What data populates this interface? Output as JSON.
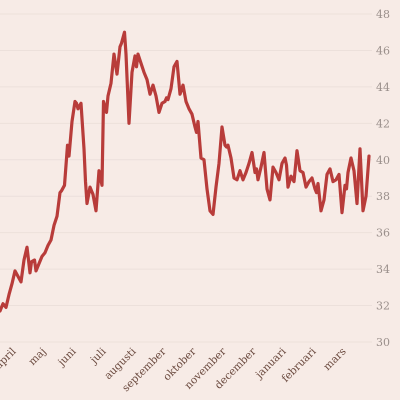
{
  "chart_data": {
    "type": "line",
    "title": "",
    "xlabel": "",
    "ylabel": "",
    "ylim": [
      30,
      48
    ],
    "y_ticks": [
      30,
      32,
      34,
      36,
      38,
      40,
      42,
      44,
      46,
      48
    ],
    "y_tick_labels": [
      "30",
      "32",
      "34",
      "36",
      "38",
      "40",
      "42",
      "44",
      "46",
      "48"
    ],
    "y_axis_position": "right",
    "grid": "horizontal",
    "x_range": [
      0,
      12.4
    ],
    "x_ticks": [
      0.55,
      1.55,
      2.55,
      3.55,
      4.55,
      5.55,
      6.55,
      7.55,
      8.55,
      9.55,
      10.55,
      11.55
    ],
    "x_tick_labels": [
      "april",
      "maj",
      "juni",
      "juli",
      "augusti",
      "september",
      "oktober",
      "november",
      "december",
      "januari",
      "februari",
      "mars"
    ],
    "line_color": "#b83c3a",
    "series": [
      {
        "x": [
          0.0,
          0.1,
          0.2,
          0.3,
          0.4,
          0.5,
          0.6,
          0.7,
          0.8,
          0.9,
          1.0,
          1.05,
          1.15,
          1.2,
          1.3,
          1.4,
          1.5,
          1.6,
          1.7,
          1.8,
          1.9,
          2.0,
          2.05,
          2.15,
          2.25,
          2.3,
          2.4,
          2.5,
          2.55,
          2.6,
          2.7,
          2.8,
          2.85,
          2.9,
          3.0,
          3.05,
          3.1,
          3.2,
          3.3,
          3.4,
          3.45,
          3.55,
          3.6,
          3.7,
          3.8,
          3.9,
          4.0,
          4.05,
          4.15,
          4.2,
          4.3,
          4.4,
          4.5,
          4.55,
          4.6,
          4.7,
          4.8,
          4.9,
          5.0,
          5.1,
          5.2,
          5.3,
          5.4,
          5.5,
          5.55,
          5.6,
          5.7,
          5.8,
          5.9,
          6.0,
          6.1,
          6.2,
          6.3,
          6.4,
          6.5,
          6.55,
          6.6,
          6.7,
          6.8,
          6.9,
          7.0,
          7.1,
          7.2,
          7.3,
          7.4,
          7.5,
          7.55,
          7.6,
          7.7,
          7.8,
          7.9,
          8.0,
          8.1,
          8.2,
          8.3,
          8.4,
          8.5,
          8.55,
          8.6,
          8.7,
          8.8,
          8.9,
          9.0,
          9.1,
          9.2,
          9.3,
          9.4,
          9.5,
          9.55,
          9.6,
          9.7,
          9.8,
          9.9,
          10.0,
          10.1,
          10.2,
          10.3,
          10.4,
          10.5,
          10.55,
          10.6,
          10.7,
          10.8,
          10.9,
          11.0,
          11.1,
          11.2,
          11.3,
          11.4,
          11.5,
          11.55,
          11.6,
          11.7,
          11.8,
          11.9,
          12.0,
          12.1,
          12.2,
          12.3
        ],
        "y": [
          31.7,
          32.1,
          31.9,
          32.6,
          33.2,
          33.9,
          33.6,
          33.3,
          34.5,
          35.2,
          33.8,
          34.4,
          34.5,
          33.9,
          34.3,
          34.7,
          34.9,
          35.3,
          35.6,
          36.4,
          36.9,
          38.2,
          38.3,
          38.6,
          40.8,
          40.2,
          42.1,
          43.2,
          43.1,
          42.8,
          43.1,
          40.6,
          38.8,
          37.6,
          38.5,
          38.3,
          38.1,
          37.2,
          39.4,
          38.6,
          43.2,
          42.6,
          43.5,
          44.2,
          45.8,
          44.7,
          46.2,
          46.4,
          47.0,
          45.8,
          42.0,
          44.8,
          45.7,
          45.1,
          45.8,
          45.3,
          44.8,
          44.4,
          43.6,
          44.1,
          43.5,
          42.6,
          43.1,
          43.2,
          43.4,
          43.3,
          43.9,
          45.1,
          45.4,
          43.6,
          44.1,
          43.2,
          42.8,
          42.5,
          41.8,
          41.5,
          42.1,
          40.1,
          40.0,
          38.4,
          37.2,
          37.0,
          38.5,
          39.8,
          41.8,
          40.8,
          40.7,
          40.8,
          40.1,
          39.0,
          38.9,
          39.4,
          38.9,
          39.3,
          39.8,
          40.4,
          39.3,
          39.5,
          38.9,
          39.6,
          40.4,
          38.4,
          37.8,
          39.6,
          39.3,
          38.9,
          39.8,
          40.1,
          39.7,
          38.5,
          39.1,
          38.8,
          40.5,
          39.4,
          39.3,
          38.5,
          38.8,
          39.0,
          38.4,
          38.2,
          38.7,
          37.2,
          37.8,
          39.2,
          39.5,
          38.8,
          38.9,
          39.2,
          37.1,
          38.6,
          38.4,
          39.3,
          40.1,
          39.4,
          37.6,
          40.6,
          37.2,
          38.0,
          40.2
        ]
      }
    ]
  }
}
